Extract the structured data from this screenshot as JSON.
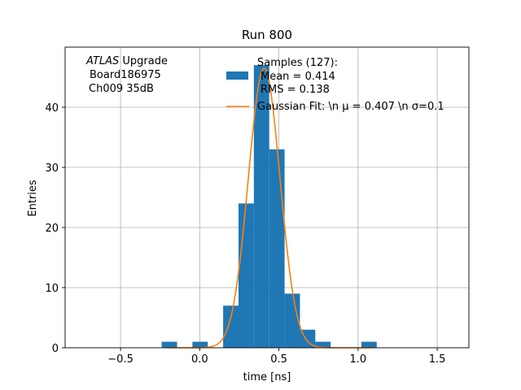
{
  "chart_data": {
    "type": "bar",
    "title": "Run 800",
    "xlabel": "time [ns]",
    "ylabel": "Entries",
    "xlim": [
      -0.85,
      1.7
    ],
    "ylim": [
      0,
      50
    ],
    "grid": true,
    "x_ticks": [
      -0.5,
      0.0,
      0.5,
      1.0,
      1.5
    ],
    "x_tick_labels": [
      "−0.5",
      "0.0",
      "0.5",
      "1.0",
      "1.5"
    ],
    "y_ticks": [
      0,
      10,
      20,
      30,
      40
    ],
    "y_tick_labels": [
      "0",
      "10",
      "20",
      "30",
      "40"
    ],
    "bin_width": 0.097,
    "histogram": [
      {
        "x0": -0.24,
        "count": 1
      },
      {
        "x0": -0.046,
        "count": 1
      },
      {
        "x0": 0.148,
        "count": 7
      },
      {
        "x0": 0.245,
        "count": 24
      },
      {
        "x0": 0.342,
        "count": 47
      },
      {
        "x0": 0.439,
        "count": 33
      },
      {
        "x0": 0.536,
        "count": 9
      },
      {
        "x0": 0.633,
        "count": 3
      },
      {
        "x0": 0.73,
        "count": 1
      },
      {
        "x0": 1.021,
        "count": 1
      }
    ],
    "fit": {
      "mu": 0.407,
      "sigma": 0.1,
      "amplitude": 46.5,
      "x_range": [
        -0.2,
        1.1
      ]
    },
    "colors": {
      "hist": "#1f77b4",
      "fit": "#ff7f0e"
    },
    "legend_placement": "top-right",
    "legend": {
      "hist_lines": [
        "Samples (127):",
        "Mean = 0.414",
        "RMS = 0.138"
      ],
      "fit_label": "Gaussian Fit: \\n μ = 0.407 \\n σ=0.1"
    },
    "annotation": {
      "line1_italic": "ATLAS",
      "line1_rest": " Upgrade",
      "line2": "Board186975",
      "line3": "Ch009 35dB"
    }
  }
}
